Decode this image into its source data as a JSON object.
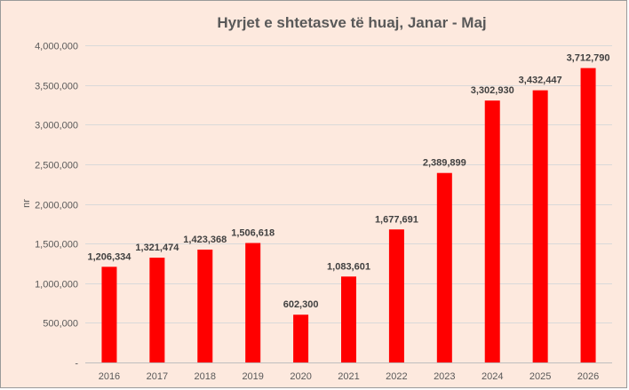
{
  "chart_data": {
    "type": "bar",
    "title": "Hyrjet e shtetasve të huaj, Janar - Maj",
    "ylabel": "nr",
    "xlabel": "",
    "categories": [
      "2016",
      "2017",
      "2018",
      "2019",
      "2020",
      "2021",
      "2022",
      "2023",
      "2024",
      "2025",
      "2026"
    ],
    "values": [
      1206334,
      1321474,
      1423368,
      1506618,
      602300,
      1083601,
      1677691,
      2389899,
      3302930,
      3432447,
      3712790
    ],
    "data_labels": [
      "1,206,334",
      "1,321,474",
      "1,423,368",
      "1,506,618",
      "602,300",
      "1,083,601",
      "1,677,691",
      "2,389,899",
      "3,302,930",
      "3,432,447",
      "3,712,790"
    ],
    "ylim": [
      0,
      4000000
    ],
    "yticks": [
      0,
      500000,
      1000000,
      1500000,
      2000000,
      2500000,
      3000000,
      3500000,
      4000000
    ],
    "ytick_labels": [
      "-",
      "500,000",
      "1,000,000",
      "1,500,000",
      "2,000,000",
      "2,500,000",
      "3,000,000",
      "3,500,000",
      "4,000,000"
    ],
    "grid": true,
    "legend": "none",
    "colors": {
      "bar": "#ff0000",
      "background": "#fde9de"
    }
  }
}
